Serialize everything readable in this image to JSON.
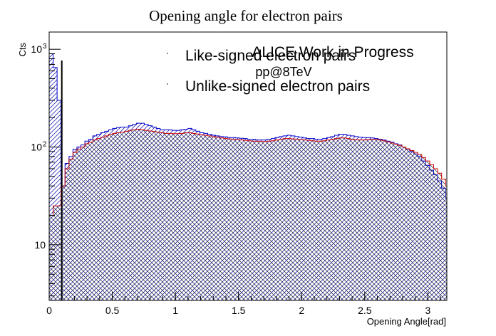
{
  "chart_data": {
    "type": "histogram",
    "title": "Opening angle for electron pairs",
    "xlabel": "Opening Angle[rad]",
    "ylabel": "Cts",
    "xlim": [
      0,
      3.15
    ],
    "ylim": [
      2.7,
      1500
    ],
    "log_y": true,
    "x_ticks": [
      {
        "value": 0,
        "label": "0"
      },
      {
        "value": 0.5,
        "label": "0.5"
      },
      {
        "value": 1,
        "label": "1"
      },
      {
        "value": 1.5,
        "label": "1.5"
      },
      {
        "value": 2,
        "label": "2"
      },
      {
        "value": 2.5,
        "label": "2.5"
      },
      {
        "value": 3,
        "label": "3"
      }
    ],
    "y_ticks": [
      {
        "value": 10,
        "label": "10"
      },
      {
        "value": 100,
        "label": "10",
        "sup": "2"
      },
      {
        "value": 1000,
        "label": "10",
        "sup": "3"
      }
    ],
    "annotations": [
      "ALICE Work in Progress",
      "pp@8TeV"
    ],
    "legend": {
      "position": "top-center",
      "entries": [
        "Like-signed electron pairs",
        "Unlike-signed electron pairs"
      ]
    },
    "bin_width": 0.0314,
    "cut_line_x": 0.1,
    "series": [
      {
        "name": "Unlike-signed electron pairs",
        "color": "#0000cc",
        "values": [
          900,
          650,
          300,
          40,
          68,
          80,
          95,
          100,
          105,
          115,
          120,
          130,
          135,
          140,
          145,
          150,
          155,
          158,
          160,
          160,
          165,
          170,
          175,
          175,
          170,
          165,
          160,
          155,
          150,
          150,
          150,
          148,
          148,
          150,
          152,
          155,
          150,
          145,
          140,
          138,
          135,
          132,
          130,
          128,
          127,
          125,
          125,
          124,
          123,
          122,
          120,
          120,
          118,
          118,
          118,
          120,
          122,
          125,
          128,
          130,
          132,
          130,
          128,
          126,
          124,
          122,
          122,
          120,
          120,
          122,
          125,
          128,
          132,
          135,
          135,
          132,
          130,
          128,
          126,
          125,
          125,
          124,
          122,
          120,
          118,
          115,
          112,
          108,
          105,
          100,
          95,
          90,
          85,
          80,
          72,
          65,
          58,
          52,
          45,
          38,
          30,
          22,
          12,
          5
        ]
      },
      {
        "name": "Like-signed electron pairs",
        "color": "#cc0000",
        "values": [
          20,
          25,
          25,
          40,
          60,
          75,
          88,
          95,
          100,
          108,
          112,
          118,
          122,
          126,
          130,
          135,
          138,
          140,
          142,
          145,
          148,
          150,
          152,
          150,
          148,
          146,
          144,
          142,
          140,
          138,
          138,
          137,
          137,
          138,
          140,
          140,
          138,
          136,
          134,
          132,
          130,
          128,
          126,
          124,
          122,
          121,
          120,
          119,
          118,
          117,
          116,
          115,
          115,
          114,
          114,
          115,
          116,
          118,
          120,
          122,
          122,
          121,
          120,
          119,
          118,
          117,
          116,
          115,
          115,
          116,
          118,
          120,
          122,
          124,
          124,
          122,
          120,
          119,
          118,
          118,
          119,
          120,
          120,
          118,
          116,
          113,
          110,
          107,
          104,
          100,
          96,
          92,
          88,
          84,
          78,
          72,
          66,
          60,
          54,
          47,
          40,
          30,
          18,
          5
        ]
      }
    ]
  }
}
